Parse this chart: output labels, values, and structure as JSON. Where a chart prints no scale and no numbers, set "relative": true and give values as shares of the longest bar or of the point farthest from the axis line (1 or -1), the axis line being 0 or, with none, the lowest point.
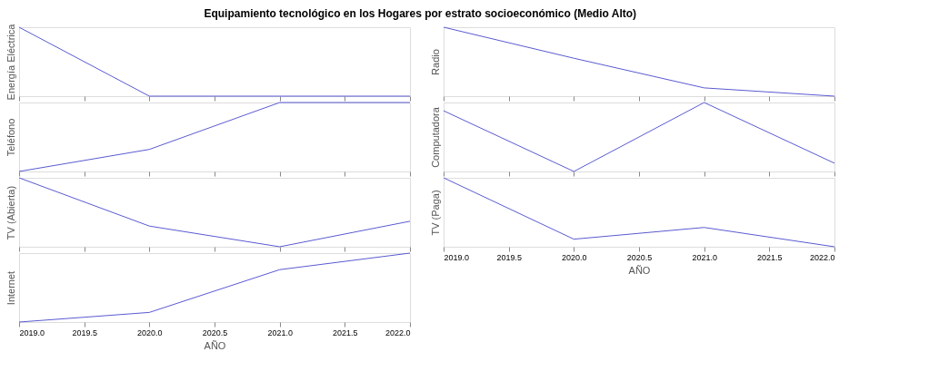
{
  "chart_data": [
    {
      "type": "line",
      "title": "Equipamiento tecnológico en los Hogares por estrato socioeconómico (Medio Alto)",
      "ylabel": "Energía Eléctrica",
      "relative": true,
      "x": [
        2019,
        2020,
        2021,
        2022
      ],
      "xlim": [
        2019,
        2022
      ],
      "xticks": [
        {
          "value": 2019,
          "label": null
        },
        {
          "value": 2019.5,
          "label": null
        },
        {
          "value": 2020,
          "label": null
        },
        {
          "value": 2020.5,
          "label": null
        },
        {
          "value": 2021,
          "label": null
        },
        {
          "value": 2021.5,
          "label": null
        },
        {
          "value": 2022,
          "label": null
        }
      ],
      "tick_labels": false,
      "series": [
        {
          "color": "#5a5ad2",
          "values": [
            1,
            0,
            0,
            0
          ]
        }
      ]
    },
    {
      "type": "line",
      "ylabel": "Teléfono",
      "relative": true,
      "x": [
        2019,
        2020,
        2021,
        2022
      ],
      "xlim": [
        2019,
        2022
      ],
      "xticks": [
        {
          "value": 2019,
          "label": null
        },
        {
          "value": 2019.5,
          "label": null
        },
        {
          "value": 2020,
          "label": null
        },
        {
          "value": 2020.5,
          "label": null
        },
        {
          "value": 2021,
          "label": null
        },
        {
          "value": 2021.5,
          "label": null
        },
        {
          "value": 2022,
          "label": null
        }
      ],
      "tick_labels": false,
      "series": [
        {
          "color": "#5a5ad2",
          "values": [
            0,
            0.32,
            1,
            1
          ]
        }
      ]
    },
    {
      "type": "line",
      "ylabel": "TV (Abierta)",
      "relative": true,
      "x": [
        2019,
        2020,
        2021,
        2022
      ],
      "xlim": [
        2019,
        2022
      ],
      "xticks": [
        {
          "value": 2019,
          "label": null
        },
        {
          "value": 2019.5,
          "label": null
        },
        {
          "value": 2020,
          "label": null
        },
        {
          "value": 2020.5,
          "label": null
        },
        {
          "value": 2021,
          "label": null
        },
        {
          "value": 2021.5,
          "label": null
        },
        {
          "value": 2022,
          "label": null
        }
      ],
      "tick_labels": false,
      "series": [
        {
          "color": "#5a5ad2",
          "values": [
            1,
            0.3,
            0,
            0.37
          ]
        }
      ]
    },
    {
      "type": "line",
      "ylabel": "Internet",
      "xlabel": "AÑO",
      "relative": true,
      "x": [
        2019,
        2020,
        2021,
        2022
      ],
      "xlim": [
        2019,
        2022
      ],
      "xticks": [
        {
          "value": 2019,
          "label": "2019.0"
        },
        {
          "value": 2019.5,
          "label": "2019.5"
        },
        {
          "value": 2020,
          "label": "2020.0"
        },
        {
          "value": 2020.5,
          "label": "2020.5"
        },
        {
          "value": 2021,
          "label": "2021.0"
        },
        {
          "value": 2021.5,
          "label": "2021.5"
        },
        {
          "value": 2022,
          "label": "2022.0"
        }
      ],
      "tick_labels": "x",
      "series": [
        {
          "color": "#5a5ad2",
          "values": [
            0,
            0.14,
            0.76,
            1
          ]
        }
      ]
    },
    {
      "type": "line",
      "ylabel": "Radio",
      "relative": true,
      "x": [
        2019,
        2020,
        2021,
        2022
      ],
      "xlim": [
        2019,
        2022
      ],
      "xticks": [
        {
          "value": 2019,
          "label": null
        },
        {
          "value": 2019.5,
          "label": null
        },
        {
          "value": 2020,
          "label": null
        },
        {
          "value": 2020.5,
          "label": null
        },
        {
          "value": 2021,
          "label": null
        },
        {
          "value": 2021.5,
          "label": null
        },
        {
          "value": 2022,
          "label": null
        }
      ],
      "tick_labels": false,
      "series": [
        {
          "color": "#5a5ad2",
          "values": [
            1,
            0.55,
            0.12,
            0
          ]
        }
      ]
    },
    {
      "type": "line",
      "ylabel": "Computadora",
      "relative": true,
      "x": [
        2019,
        2020,
        2021,
        2022
      ],
      "xlim": [
        2019,
        2022
      ],
      "xticks": [
        {
          "value": 2019,
          "label": null
        },
        {
          "value": 2019.5,
          "label": null
        },
        {
          "value": 2020,
          "label": null
        },
        {
          "value": 2020.5,
          "label": null
        },
        {
          "value": 2021,
          "label": null
        },
        {
          "value": 2021.5,
          "label": null
        },
        {
          "value": 2022,
          "label": null
        }
      ],
      "tick_labels": false,
      "series": [
        {
          "color": "#5a5ad2",
          "values": [
            0.88,
            0,
            1,
            0.12
          ]
        }
      ]
    },
    {
      "type": "line",
      "ylabel": "TV (Paga)",
      "xlabel": "AÑO",
      "relative": true,
      "x": [
        2019,
        2020,
        2021,
        2022
      ],
      "xlim": [
        2019,
        2022
      ],
      "xticks": [
        {
          "value": 2019,
          "label": "2019.0"
        },
        {
          "value": 2019.5,
          "label": "2019.5"
        },
        {
          "value": 2020,
          "label": "2020.0"
        },
        {
          "value": 2020.5,
          "label": "2020.5"
        },
        {
          "value": 2021,
          "label": "2021.0"
        },
        {
          "value": 2021.5,
          "label": "2021.5"
        },
        {
          "value": 2022,
          "label": "2022.0"
        }
      ],
      "tick_labels": "x",
      "series": [
        {
          "color": "#5a5ad2",
          "values": [
            1,
            0.11,
            0.28,
            0
          ]
        }
      ]
    }
  ]
}
